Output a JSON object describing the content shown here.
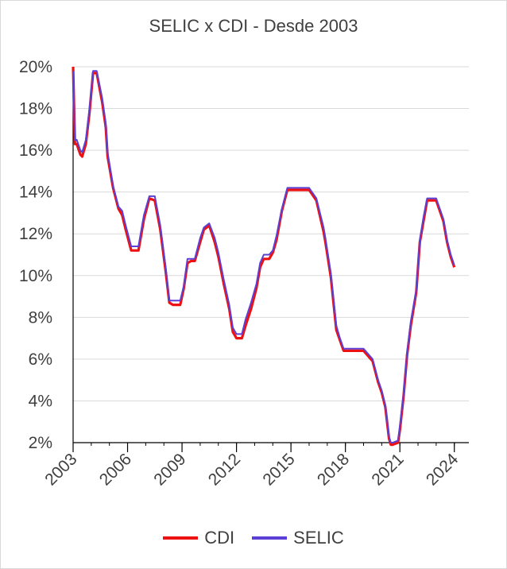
{
  "chart_data": {
    "type": "line",
    "title": "SELIC x CDI - Desde 2003",
    "xlabel": "",
    "ylabel": "",
    "xlim": [
      2003,
      2024.8
    ],
    "ylim": [
      2,
      20
    ],
    "x_ticks": [
      "2003",
      "2006",
      "2009",
      "2012",
      "2015",
      "2018",
      "2021",
      "2024"
    ],
    "y_ticks": [
      "20%",
      "18%",
      "16%",
      "14%",
      "12%",
      "10%",
      "8%",
      "6%",
      "4%",
      "2%"
    ],
    "grid": true,
    "legend_position": "bottom",
    "colors": {
      "CDI": "#ee1111",
      "SELIC": "#5b3fd6"
    },
    "series": [
      {
        "name": "CDI",
        "x": [
          2003.0,
          2003.1,
          2003.2,
          2003.4,
          2003.5,
          2003.7,
          2003.9,
          2004.1,
          2004.3,
          2004.6,
          2004.8,
          2004.9,
          2005.2,
          2005.5,
          2005.7,
          2005.9,
          2006.2,
          2006.4,
          2006.6,
          2006.9,
          2007.2,
          2007.5,
          2007.8,
          2008.1,
          2008.3,
          2008.5,
          2008.7,
          2008.9,
          2009.1,
          2009.3,
          2009.5,
          2009.7,
          2010.0,
          2010.2,
          2010.5,
          2010.8,
          2011.0,
          2011.3,
          2011.6,
          2011.8,
          2012.0,
          2012.3,
          2012.5,
          2012.8,
          2013.1,
          2013.3,
          2013.5,
          2013.8,
          2014.0,
          2014.2,
          2014.5,
          2014.8,
          2015.0,
          2015.3,
          2015.6,
          2016.0,
          2016.4,
          2016.8,
          2016.9,
          2017.2,
          2017.5,
          2017.7,
          2017.9,
          2018.2,
          2018.5,
          2019.0,
          2019.5,
          2019.8,
          2020.0,
          2020.2,
          2020.4,
          2020.5,
          2020.6,
          2020.9,
          2021.0,
          2021.2,
          2021.4,
          2021.6,
          2021.9,
          2022.1,
          2022.3,
          2022.5,
          2022.7,
          2023.0,
          2023.4,
          2023.6,
          2023.8,
          2024.0
        ],
        "values": [
          20.0,
          16.3,
          16.3,
          15.8,
          15.7,
          16.3,
          17.8,
          19.7,
          19.7,
          18.3,
          17.1,
          15.7,
          14.2,
          13.2,
          12.9,
          12.2,
          11.2,
          11.2,
          11.2,
          12.7,
          13.7,
          13.6,
          12.2,
          10.2,
          8.7,
          8.6,
          8.6,
          8.6,
          9.4,
          10.6,
          10.7,
          10.7,
          11.6,
          12.2,
          12.4,
          11.6,
          10.9,
          9.6,
          8.4,
          7.3,
          7.0,
          7.0,
          7.6,
          8.4,
          9.4,
          10.4,
          10.8,
          10.8,
          11.1,
          11.7,
          13.1,
          14.1,
          14.1,
          14.1,
          14.1,
          14.1,
          13.6,
          12.1,
          11.6,
          9.9,
          7.4,
          6.9,
          6.4,
          6.4,
          6.4,
          6.4,
          5.9,
          4.9,
          4.4,
          3.7,
          2.2,
          1.9,
          1.9,
          2.0,
          2.6,
          4.2,
          6.2,
          7.6,
          9.2,
          11.6,
          12.6,
          13.6,
          13.6,
          13.6,
          12.6,
          11.6,
          10.9,
          10.4
        ]
      },
      {
        "name": "SELIC",
        "x": [
          2003.0,
          2003.1,
          2003.2,
          2003.4,
          2003.5,
          2003.7,
          2003.9,
          2004.1,
          2004.3,
          2004.6,
          2004.8,
          2004.9,
          2005.2,
          2005.5,
          2005.7,
          2005.9,
          2006.2,
          2006.4,
          2006.6,
          2006.9,
          2007.2,
          2007.5,
          2007.8,
          2008.1,
          2008.3,
          2008.5,
          2008.7,
          2008.9,
          2009.1,
          2009.3,
          2009.5,
          2009.7,
          2010.0,
          2010.2,
          2010.5,
          2010.8,
          2011.0,
          2011.3,
          2011.6,
          2011.8,
          2012.0,
          2012.3,
          2012.5,
          2012.8,
          2013.1,
          2013.3,
          2013.5,
          2013.8,
          2014.0,
          2014.2,
          2014.5,
          2014.8,
          2015.0,
          2015.3,
          2015.6,
          2016.0,
          2016.4,
          2016.8,
          2016.9,
          2017.2,
          2017.5,
          2017.7,
          2017.9,
          2018.2,
          2018.5,
          2019.0,
          2019.5,
          2019.8,
          2020.0,
          2020.2,
          2020.4,
          2020.5,
          2020.6,
          2020.9,
          2021.0,
          2021.2,
          2021.4,
          2021.6,
          2021.9,
          2022.1,
          2022.3,
          2022.5,
          2022.7,
          2023.0,
          2023.4,
          2023.6,
          2023.8,
          2024.0
        ],
        "values": [
          19.8,
          16.5,
          16.5,
          16.0,
          15.9,
          16.5,
          18.0,
          19.8,
          19.8,
          18.5,
          17.3,
          15.9,
          14.3,
          13.3,
          13.1,
          12.4,
          11.4,
          11.4,
          11.4,
          12.9,
          13.8,
          13.8,
          12.4,
          10.4,
          8.8,
          8.8,
          8.8,
          8.8,
          9.5,
          10.8,
          10.8,
          10.8,
          11.8,
          12.3,
          12.5,
          11.8,
          11.1,
          9.8,
          8.6,
          7.5,
          7.2,
          7.2,
          7.9,
          8.7,
          9.6,
          10.6,
          11.0,
          11.0,
          11.2,
          11.9,
          13.2,
          14.2,
          14.2,
          14.2,
          14.2,
          14.2,
          13.7,
          12.3,
          11.8,
          10.1,
          7.6,
          7.0,
          6.5,
          6.5,
          6.5,
          6.5,
          6.0,
          5.0,
          4.5,
          3.8,
          2.3,
          2.0,
          2.0,
          2.1,
          2.8,
          4.3,
          6.3,
          7.8,
          9.3,
          11.7,
          12.8,
          13.7,
          13.7,
          13.7,
          12.7,
          11.7,
          11.0,
          10.5
        ]
      }
    ]
  }
}
